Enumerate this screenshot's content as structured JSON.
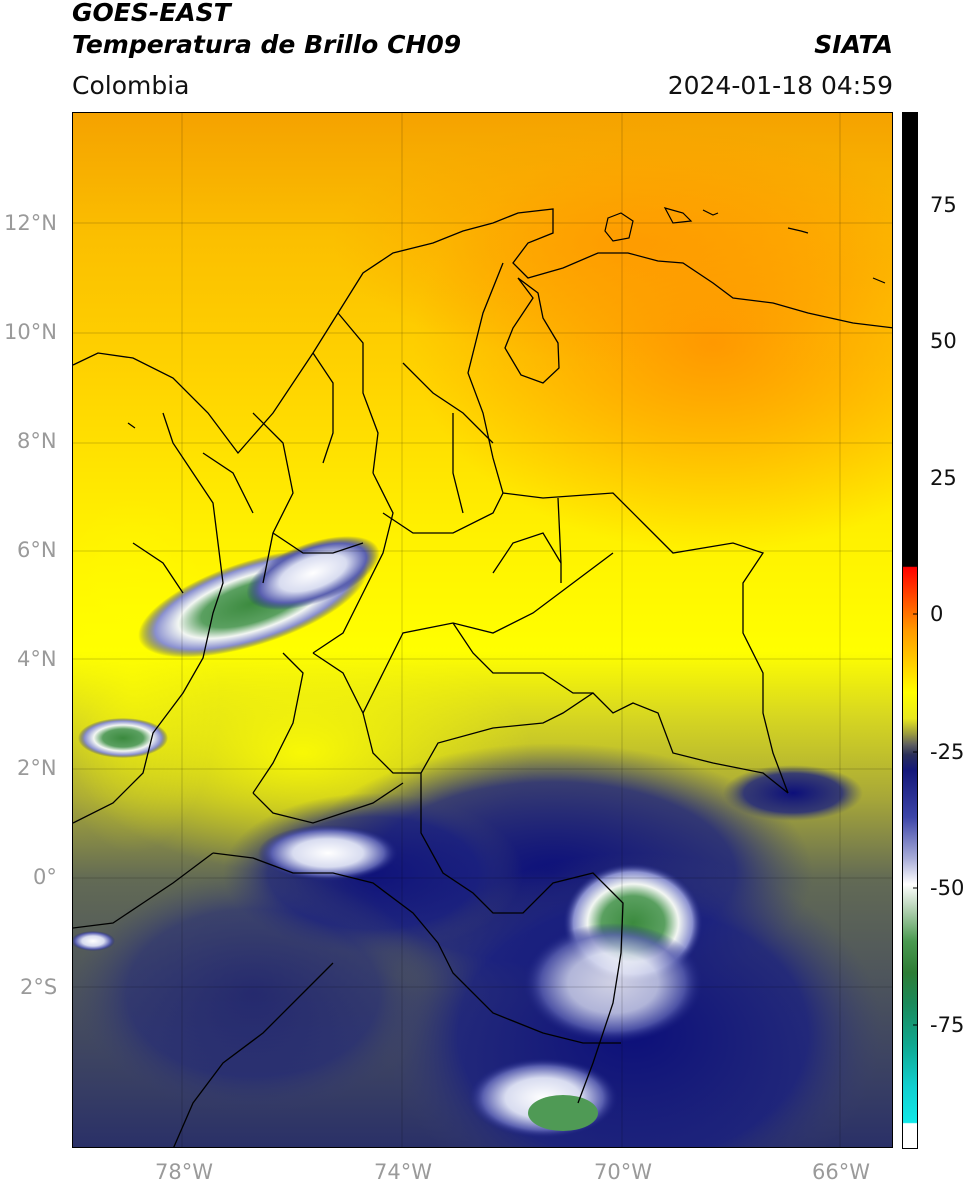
{
  "header": {
    "satellite": "GOES-EAST",
    "product": "Temperatura de Brillo CH09",
    "org": "SIATA",
    "region": "Colombia",
    "datetime": "2024-01-18 04:59"
  },
  "map": {
    "lat_labels": [
      "12°N",
      "10°N",
      "8°N",
      "6°N",
      "4°N",
      "2°N",
      "0°",
      "2°S"
    ],
    "lon_labels": [
      "78°W",
      "74°W",
      "70°W",
      "66°W"
    ]
  },
  "colorbar": {
    "tick_labels": [
      "75",
      "50",
      "25",
      "0",
      "-25",
      "-50",
      "-75"
    ],
    "colors": {
      "warm": "#000000",
      "red": "#e8200c",
      "orange": "#ff9a00",
      "yellow": "#ffff00",
      "olive": "#9a9a40",
      "navy": "#14187a",
      "white": "#ffffff",
      "green": "#2e7d35",
      "cyan": "#10e0e0"
    }
  }
}
